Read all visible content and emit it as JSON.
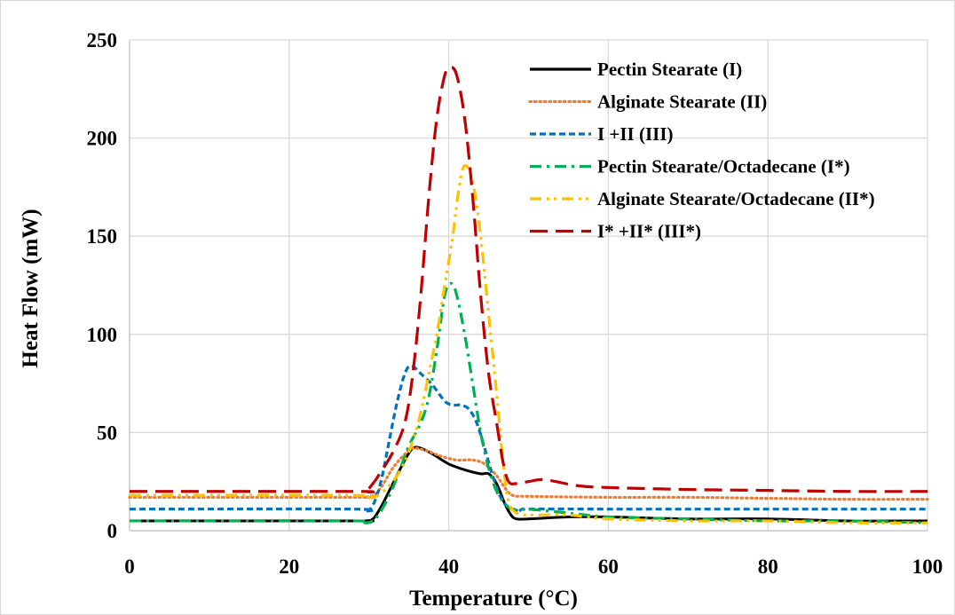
{
  "chart_data": {
    "type": "line",
    "title": "",
    "xlabel": "Temperature (°C)",
    "ylabel": "Heat Flow (mW)",
    "xlim": [
      0,
      100
    ],
    "ylim": [
      0,
      250
    ],
    "xticks": [
      "0",
      "20",
      "40",
      "60",
      "80",
      "100"
    ],
    "yticks": [
      "0",
      "50",
      "100",
      "150",
      "200",
      "250"
    ],
    "grid": "vertical-and-horizontal",
    "legend_position": "top-right",
    "series": [
      {
        "name": "Pectin Stearate (I)",
        "color": "#000000",
        "dash": "solid",
        "points": [
          [
            0,
            5
          ],
          [
            28,
            5
          ],
          [
            29.5,
            5
          ],
          [
            30.5,
            6
          ],
          [
            31.5,
            12
          ],
          [
            33,
            24
          ],
          [
            34.5,
            36
          ],
          [
            35.5,
            42
          ],
          [
            36.5,
            42
          ],
          [
            38,
            39
          ],
          [
            40,
            34
          ],
          [
            42,
            31
          ],
          [
            44,
            29
          ],
          [
            45,
            29
          ],
          [
            46,
            24
          ],
          [
            47,
            14
          ],
          [
            47.8,
            8
          ],
          [
            48.5,
            6
          ],
          [
            50,
            6
          ],
          [
            55,
            7
          ],
          [
            60,
            7
          ],
          [
            70,
            6
          ],
          [
            80,
            6
          ],
          [
            90,
            5
          ],
          [
            100,
            5
          ]
        ]
      },
      {
        "name": "Alginate Stearate (II)",
        "color": "#ED7D31",
        "dash": "dotted",
        "points": [
          [
            0,
            17
          ],
          [
            28,
            17
          ],
          [
            29.5,
            17
          ],
          [
            30.5,
            18
          ],
          [
            31.5,
            22
          ],
          [
            33,
            32
          ],
          [
            34.5,
            39
          ],
          [
            35.5,
            42
          ],
          [
            37,
            41
          ],
          [
            39,
            38
          ],
          [
            41,
            36
          ],
          [
            43,
            36
          ],
          [
            44.5,
            34
          ],
          [
            46,
            28
          ],
          [
            47,
            22
          ],
          [
            48,
            18
          ],
          [
            50,
            17.5
          ],
          [
            60,
            17
          ],
          [
            70,
            17
          ],
          [
            80,
            16.5
          ],
          [
            90,
            16
          ],
          [
            100,
            16
          ]
        ]
      },
      {
        "name": "I +II (III)",
        "color": "#0070C0",
        "dash": "dashed-short",
        "points": [
          [
            0,
            11
          ],
          [
            28,
            11
          ],
          [
            29.5,
            10
          ],
          [
            30.5,
            13
          ],
          [
            31.5,
            25
          ],
          [
            32.5,
            45
          ],
          [
            33.5,
            65
          ],
          [
            34.5,
            80
          ],
          [
            35.3,
            84
          ],
          [
            36.5,
            80
          ],
          [
            38,
            74
          ],
          [
            39.5,
            66
          ],
          [
            40.5,
            64
          ],
          [
            41.5,
            64
          ],
          [
            42.5,
            62
          ],
          [
            43.5,
            55
          ],
          [
            44.5,
            42
          ],
          [
            45.5,
            28
          ],
          [
            46.5,
            17
          ],
          [
            47.5,
            12
          ],
          [
            49,
            10
          ],
          [
            50,
            11
          ],
          [
            60,
            11
          ],
          [
            70,
            11
          ],
          [
            80,
            11
          ],
          [
            90,
            11
          ],
          [
            100,
            11
          ]
        ]
      },
      {
        "name": "Pectin Stearate/Octadecane (I*)",
        "color": "#00B050",
        "dash": "dash-dot",
        "points": [
          [
            0,
            5
          ],
          [
            28,
            5
          ],
          [
            29.5,
            4
          ],
          [
            30.5,
            5
          ],
          [
            31.5,
            10
          ],
          [
            33,
            22
          ],
          [
            35,
            43
          ],
          [
            36.5,
            55
          ],
          [
            37.5,
            68
          ],
          [
            38.5,
            92
          ],
          [
            39.5,
            120
          ],
          [
            40.3,
            126
          ],
          [
            41,
            120
          ],
          [
            42,
            100
          ],
          [
            43,
            75
          ],
          [
            44,
            50
          ],
          [
            45,
            32
          ],
          [
            46,
            20
          ],
          [
            47,
            14
          ],
          [
            48,
            11
          ],
          [
            50,
            11
          ],
          [
            55,
            9
          ],
          [
            60,
            7
          ],
          [
            70,
            6
          ],
          [
            80,
            5
          ],
          [
            90,
            5
          ],
          [
            100,
            4
          ]
        ]
      },
      {
        "name": "Alginate Stearate/Octadecane (II*)",
        "color": "#FFC000",
        "dash": "dash-dot-dot",
        "points": [
          [
            0,
            18
          ],
          [
            28,
            18
          ],
          [
            29.5,
            17
          ],
          [
            30.5,
            17
          ],
          [
            31.5,
            19
          ],
          [
            33,
            25
          ],
          [
            34.5,
            35
          ],
          [
            35.5,
            46
          ],
          [
            36.5,
            60
          ],
          [
            37.5,
            80
          ],
          [
            38.5,
            100
          ],
          [
            39.5,
            125
          ],
          [
            40.5,
            150
          ],
          [
            41.3,
            175
          ],
          [
            42,
            186
          ],
          [
            43,
            178
          ],
          [
            44,
            150
          ],
          [
            45,
            110
          ],
          [
            46,
            70
          ],
          [
            46.8,
            35
          ],
          [
            47.5,
            15
          ],
          [
            48.5,
            9
          ],
          [
            50,
            8
          ],
          [
            55,
            8
          ],
          [
            60,
            6
          ],
          [
            70,
            5
          ],
          [
            80,
            5
          ],
          [
            90,
            4
          ],
          [
            100,
            4
          ]
        ]
      },
      {
        "name": "I* +II* (III*)",
        "color": "#C00000",
        "dash": "long-dash",
        "points": [
          [
            0,
            20
          ],
          [
            28,
            20
          ],
          [
            29.5,
            20
          ],
          [
            30.5,
            24
          ],
          [
            31.5,
            30
          ],
          [
            33,
            40
          ],
          [
            34.5,
            55
          ],
          [
            35.5,
            80
          ],
          [
            36.5,
            120
          ],
          [
            37.5,
            170
          ],
          [
            38.5,
            210
          ],
          [
            39.5,
            232
          ],
          [
            40.2,
            236
          ],
          [
            41,
            232
          ],
          [
            42,
            210
          ],
          [
            43,
            170
          ],
          [
            44,
            120
          ],
          [
            45,
            80
          ],
          [
            46,
            55
          ],
          [
            46.8,
            35
          ],
          [
            47.5,
            25
          ],
          [
            48.5,
            24
          ],
          [
            50,
            25
          ],
          [
            52,
            26
          ],
          [
            56,
            23
          ],
          [
            60,
            22
          ],
          [
            70,
            21
          ],
          [
            80,
            20.5
          ],
          [
            90,
            20
          ],
          [
            100,
            20
          ]
        ]
      }
    ]
  }
}
